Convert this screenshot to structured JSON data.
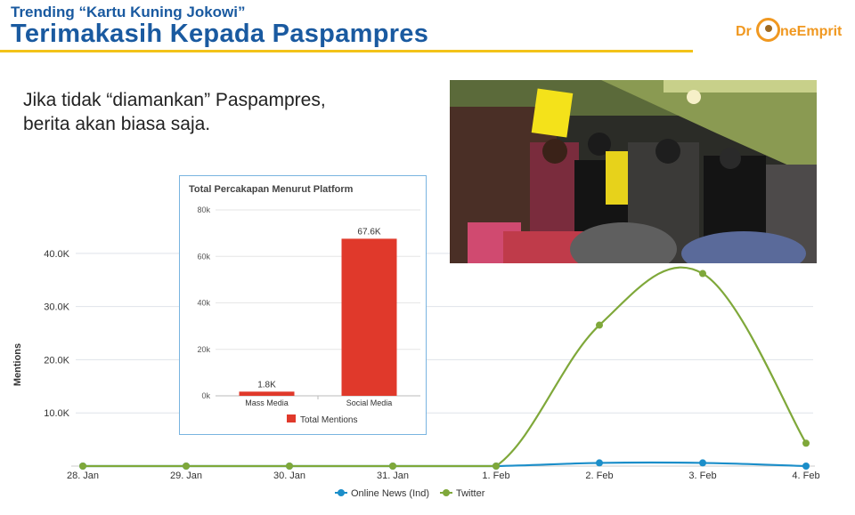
{
  "header": {
    "subtitle": "Trending “Kartu Kuning Jokowi”",
    "title": "Terimakasih Kepada Paspampres",
    "accent_color": "#f3c318",
    "title_color": "#1a5aa0"
  },
  "logo": {
    "text_left": "Dr",
    "text_right": "neEmprit",
    "icon": "drone-icon",
    "color": "#f09820"
  },
  "quote": {
    "line1": "Jika tidak “diamankan” Paspampres,",
    "line2": "berita akan biasa saja."
  },
  "photo": {
    "icon": "crowd-photo"
  },
  "chart_data": [
    {
      "type": "line",
      "ylabel": "Mentions",
      "x": [
        "28. Jan",
        "29. Jan",
        "30. Jan",
        "31. Jan",
        "1. Feb",
        "2. Feb",
        "3. Feb",
        "4. Feb"
      ],
      "ytick_labels": [
        "10.0K",
        "20.0K",
        "30.0K",
        "40.0K"
      ],
      "ylim": [
        0,
        48000
      ],
      "grid": true,
      "legend_position": "bottom",
      "series": [
        {
          "name": "Online News (Ind)",
          "color": "#1b8ec9",
          "values": [
            0,
            0,
            0,
            0,
            0,
            600,
            600,
            0
          ]
        },
        {
          "name": "Twitter",
          "color": "#7fa83a",
          "values": [
            0,
            0,
            0,
            0,
            0,
            26500,
            36200,
            4300
          ]
        }
      ]
    },
    {
      "type": "bar",
      "title": "Total Percakapan Menurut Platform",
      "categories": [
        "Mass Media",
        "Social Media"
      ],
      "values": [
        1800,
        67600
      ],
      "data_labels": [
        "1.8K",
        "67.6K"
      ],
      "ytick_labels": [
        "0k",
        "20k",
        "40k",
        "60k",
        "80k"
      ],
      "ylim": [
        0,
        80000
      ],
      "legend": "Total Mentions",
      "color": "#e0392b"
    }
  ]
}
